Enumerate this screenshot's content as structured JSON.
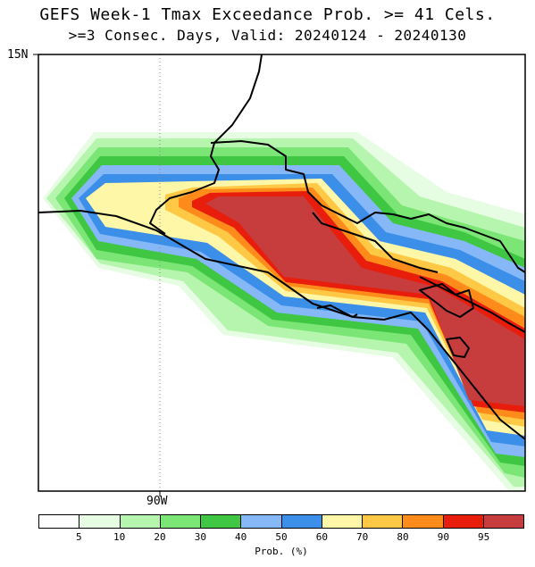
{
  "title_line1": "GEFS Week-1 Tmax Exceedance Prob. >= 41 Cels.",
  "title_line2": ">=3 Consec. Days, Valid: 20240124 - 20240130",
  "axes": {
    "lat_label": "15N",
    "lon_label": "90W"
  },
  "colorbar": {
    "label": "Prob. (%)",
    "colors": [
      "#ffffff",
      "#e6fce3",
      "#b6f5ad",
      "#7be676",
      "#3fc743",
      "#86b7f7",
      "#3c8fe8",
      "#fff7a8",
      "#ffc845",
      "#ff8c1a",
      "#e81d0c",
      "#c73d3d"
    ],
    "ticks": [
      "5",
      "10",
      "20",
      "30",
      "40",
      "50",
      "60",
      "70",
      "80",
      "90",
      "95"
    ]
  },
  "map": {
    "region": "Central America (Guatemala / El Salvador / Honduras / Nicaragua Pacific coast)",
    "max_probability_band": "95"
  }
}
